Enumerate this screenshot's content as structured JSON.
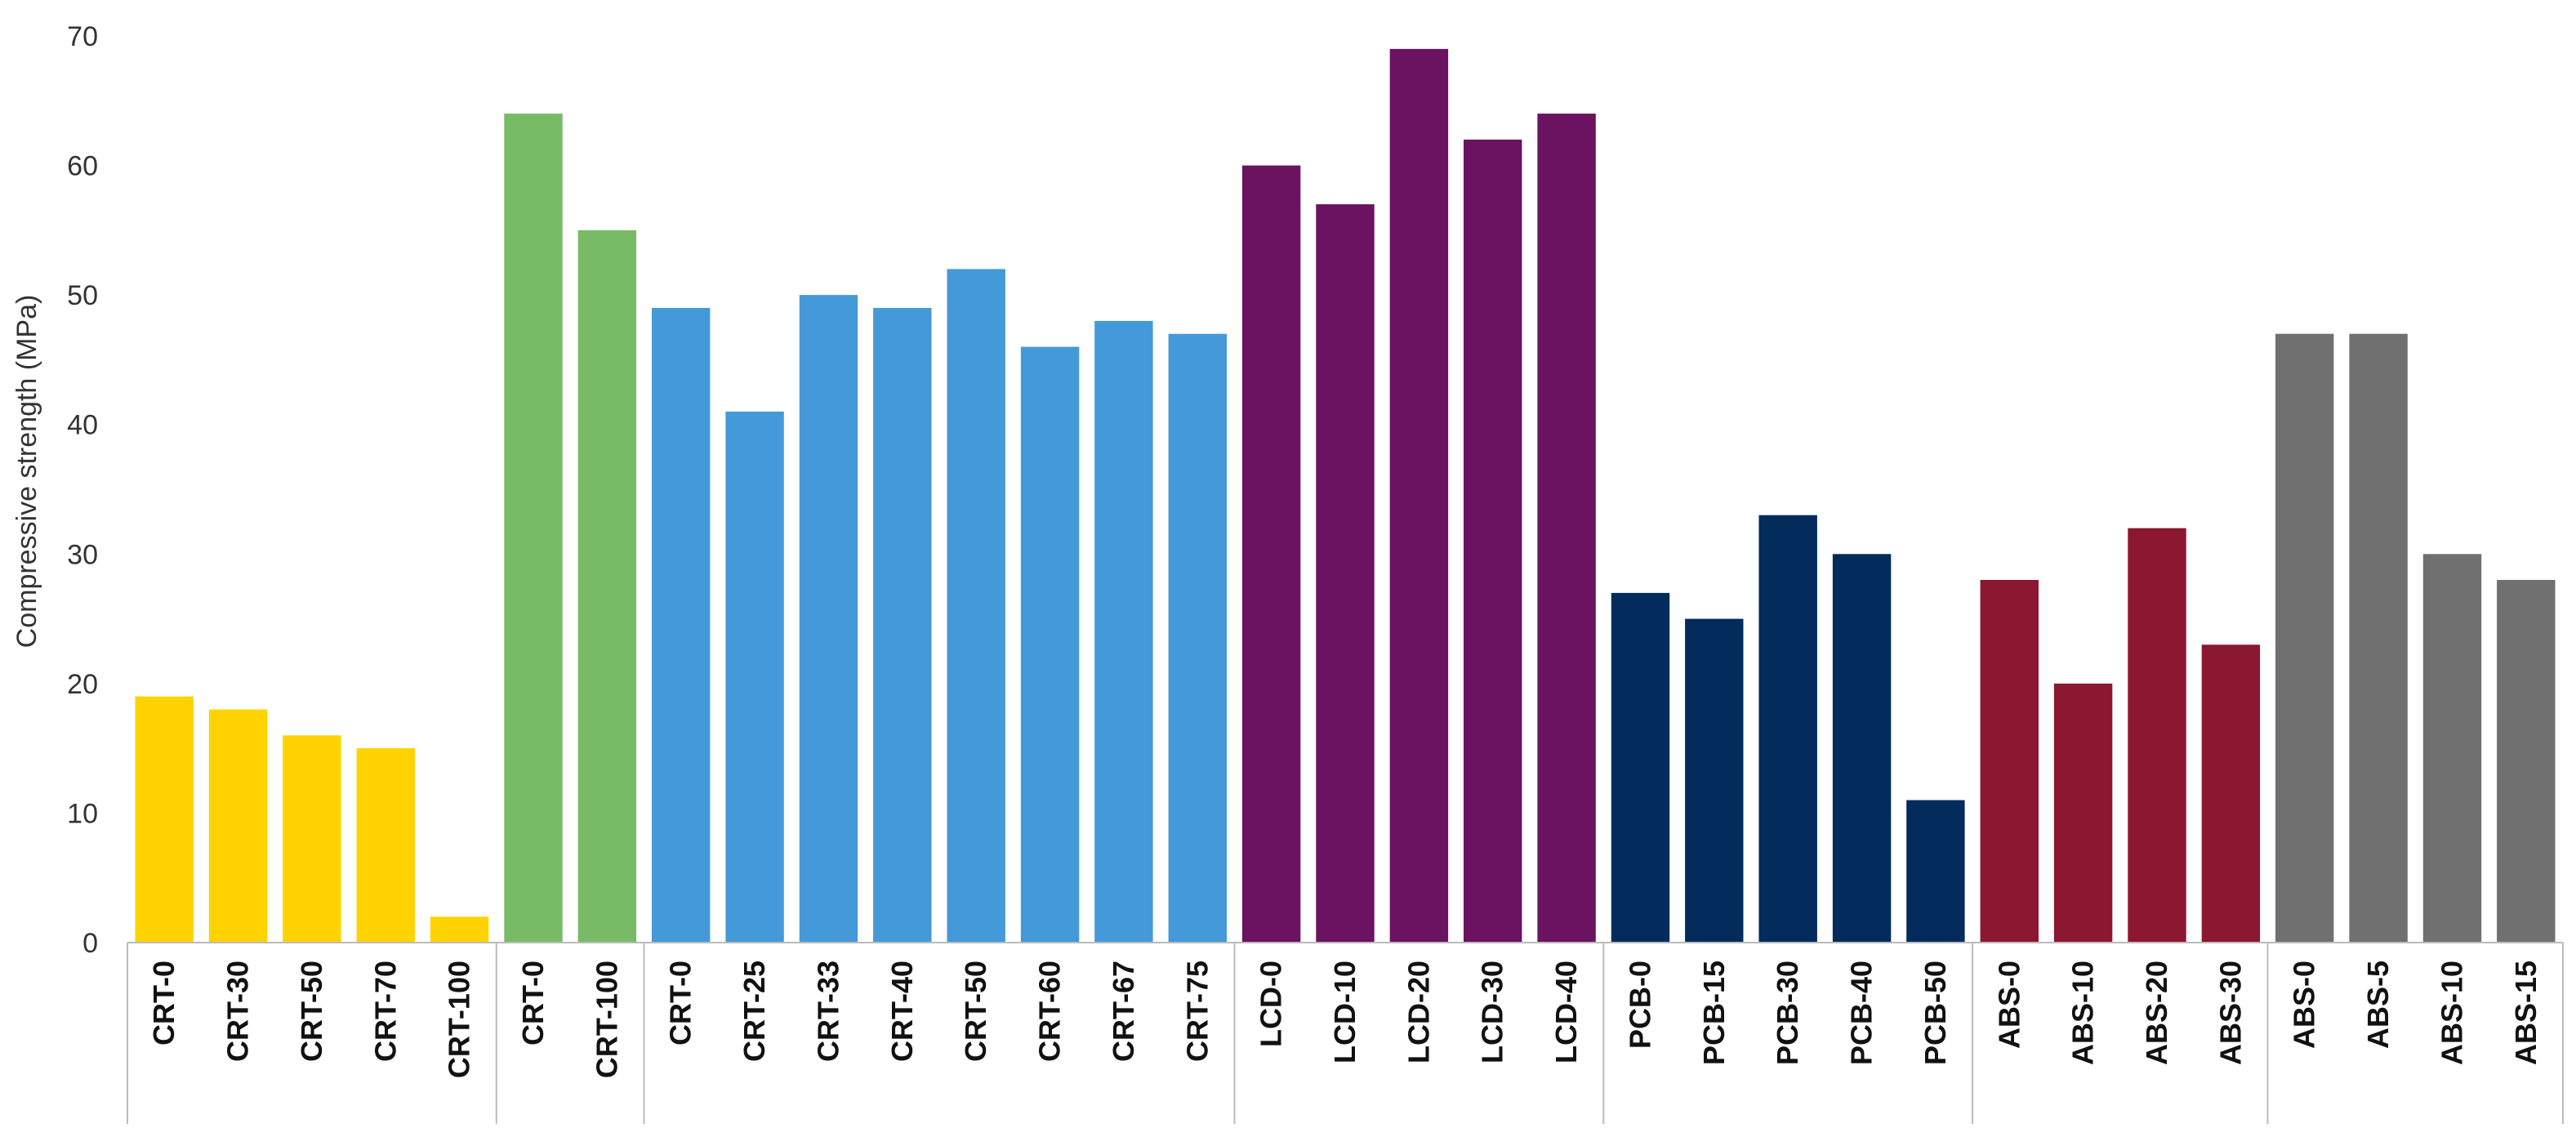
{
  "chart_data": {
    "type": "bar",
    "title": "",
    "xlabel": "",
    "ylabel": "Compressive strength (MPa)",
    "ylim": [
      0,
      70
    ],
    "yticks": [
      0,
      10,
      20,
      30,
      40,
      50,
      60,
      70
    ],
    "grid": false,
    "legend": "none",
    "groups": [
      {
        "color": "#FFD200",
        "categories": [
          "CRT-0",
          "CRT-30",
          "CRT-50",
          "CRT-70",
          "CRT-100"
        ],
        "values": [
          19,
          18,
          16,
          15,
          2
        ]
      },
      {
        "color": "#77BB66",
        "categories": [
          "CRT-0",
          "CRT-100"
        ],
        "values": [
          64,
          55
        ]
      },
      {
        "color": "#4499D8",
        "categories": [
          "CRT-0",
          "CRT-25",
          "CRT-33",
          "CRT-40",
          "CRT-50",
          "CRT-60",
          "CRT-67",
          "CRT-75"
        ],
        "values": [
          49,
          41,
          50,
          49,
          52,
          46,
          48,
          47
        ]
      },
      {
        "color": "#6B1260",
        "categories": [
          "LCD-0",
          "LCD-10",
          "LCD-20",
          "LCD-30",
          "LCD-40"
        ],
        "values": [
          60,
          57,
          69,
          62,
          64
        ]
      },
      {
        "color": "#032B5C",
        "categories": [
          "PCB-0",
          "PCB-15",
          "PCB-30",
          "PCB-40",
          "PCB-50"
        ],
        "values": [
          27,
          25,
          33,
          30,
          11
        ]
      },
      {
        "color": "#8C1731",
        "categories": [
          "ABS-0",
          "ABS-10",
          "ABS-20",
          "ABS-30"
        ],
        "values": [
          28,
          20,
          32,
          23
        ]
      },
      {
        "color": "#707070",
        "categories": [
          "ABS-0",
          "ABS-5",
          "ABS-10",
          "ABS-15"
        ],
        "values": [
          47,
          47,
          30,
          28
        ]
      }
    ]
  }
}
